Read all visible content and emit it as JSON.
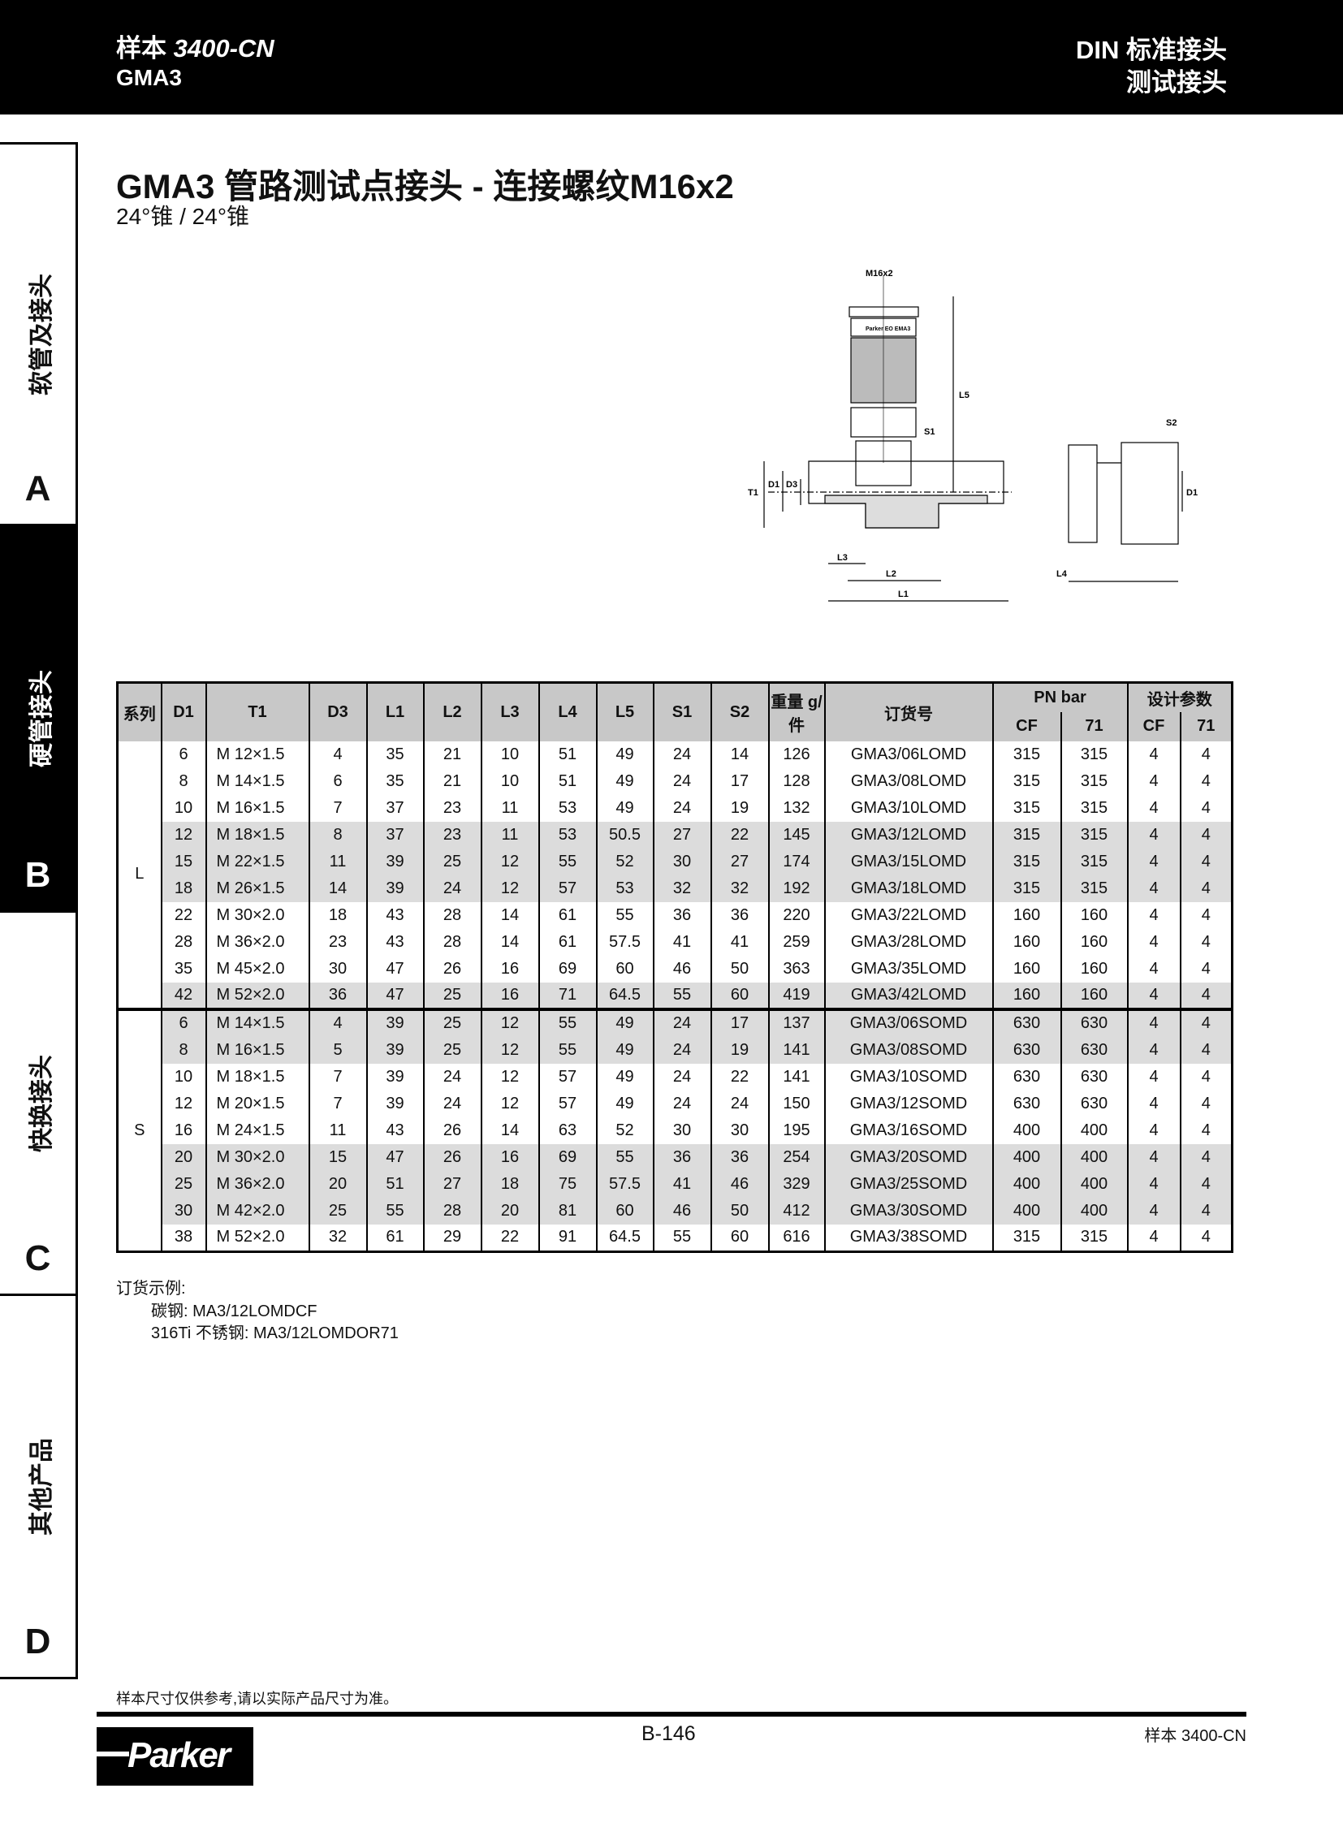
{
  "header": {
    "catalog_prefix": "样本",
    "catalog_code": "3400-CN",
    "product": "GMA3",
    "category": "DIN 标准接头",
    "subcategory": "测试接头"
  },
  "sidebar": [
    {
      "label": "软管及接头",
      "letter": "A"
    },
    {
      "label": "硬管接头",
      "letter": "B",
      "active": true
    },
    {
      "label": "快换接头",
      "letter": "C"
    },
    {
      "label": "其他产品",
      "letter": "D"
    }
  ],
  "title": "GMA3   管路测试点接头 - 连接螺纹M16x2",
  "subtitle": "24°锥 / 24°锥",
  "drawing": {
    "labels": {
      "thread": "M16x2",
      "L5": "L5",
      "S1": "S1",
      "T1": "T1",
      "D1": "D1",
      "D3": "D3",
      "L3": "L3",
      "L2": "L2",
      "L1": "L1",
      "S2": "S2",
      "D1b": "D1",
      "L4": "L4",
      "marking": "Parker EO EMA3"
    }
  },
  "table": {
    "headers": [
      "系列",
      "D1",
      "T1",
      "D3",
      "L1",
      "L2",
      "L3",
      "L4",
      "L5",
      "S1",
      "S2",
      "重量 g/ 件",
      "订货号",
      "PN bar",
      "设计参数"
    ],
    "subheaders": [
      "CF",
      "71",
      "CF",
      "71"
    ],
    "groups": [
      {
        "series": "L",
        "rows": [
          [
            "6",
            "M 12×1.5",
            "4",
            "35",
            "21",
            "10",
            "51",
            "49",
            "24",
            "14",
            "126",
            "GMA3/06LOMD",
            "315",
            "315",
            "4",
            "4"
          ],
          [
            "8",
            "M 14×1.5",
            "6",
            "35",
            "21",
            "10",
            "51",
            "49",
            "24",
            "17",
            "128",
            "GMA3/08LOMD",
            "315",
            "315",
            "4",
            "4"
          ],
          [
            "10",
            "M 16×1.5",
            "7",
            "37",
            "23",
            "11",
            "53",
            "49",
            "24",
            "19",
            "132",
            "GMA3/10LOMD",
            "315",
            "315",
            "4",
            "4"
          ],
          [
            "12",
            "M 18×1.5",
            "8",
            "37",
            "23",
            "11",
            "53",
            "50.5",
            "27",
            "22",
            "145",
            "GMA3/12LOMD",
            "315",
            "315",
            "4",
            "4"
          ],
          [
            "15",
            "M 22×1.5",
            "11",
            "39",
            "25",
            "12",
            "55",
            "52",
            "30",
            "27",
            "174",
            "GMA3/15LOMD",
            "315",
            "315",
            "4",
            "4"
          ],
          [
            "18",
            "M 26×1.5",
            "14",
            "39",
            "24",
            "12",
            "57",
            "53",
            "32",
            "32",
            "192",
            "GMA3/18LOMD",
            "315",
            "315",
            "4",
            "4"
          ],
          [
            "22",
            "M 30×2.0",
            "18",
            "43",
            "28",
            "14",
            "61",
            "55",
            "36",
            "36",
            "220",
            "GMA3/22LOMD",
            "160",
            "160",
            "4",
            "4"
          ],
          [
            "28",
            "M 36×2.0",
            "23",
            "43",
            "28",
            "14",
            "61",
            "57.5",
            "41",
            "41",
            "259",
            "GMA3/28LOMD",
            "160",
            "160",
            "4",
            "4"
          ],
          [
            "35",
            "M 45×2.0",
            "30",
            "47",
            "26",
            "16",
            "69",
            "60",
            "46",
            "50",
            "363",
            "GMA3/35LOMD",
            "160",
            "160",
            "4",
            "4"
          ],
          [
            "42",
            "M 52×2.0",
            "36",
            "47",
            "25",
            "16",
            "71",
            "64.5",
            "55",
            "60",
            "419",
            "GMA3/42LOMD",
            "160",
            "160",
            "4",
            "4"
          ]
        ],
        "shaded": [
          false,
          false,
          false,
          true,
          true,
          true,
          false,
          false,
          false,
          true
        ]
      },
      {
        "series": "S",
        "rows": [
          [
            "6",
            "M 14×1.5",
            "4",
            "39",
            "25",
            "12",
            "55",
            "49",
            "24",
            "17",
            "137",
            "GMA3/06SOMD",
            "630",
            "630",
            "4",
            "4"
          ],
          [
            "8",
            "M 16×1.5",
            "5",
            "39",
            "25",
            "12",
            "55",
            "49",
            "24",
            "19",
            "141",
            "GMA3/08SOMD",
            "630",
            "630",
            "4",
            "4"
          ],
          [
            "10",
            "M 18×1.5",
            "7",
            "39",
            "24",
            "12",
            "57",
            "49",
            "24",
            "22",
            "141",
            "GMA3/10SOMD",
            "630",
            "630",
            "4",
            "4"
          ],
          [
            "12",
            "M 20×1.5",
            "7",
            "39",
            "24",
            "12",
            "57",
            "49",
            "24",
            "24",
            "150",
            "GMA3/12SOMD",
            "630",
            "630",
            "4",
            "4"
          ],
          [
            "16",
            "M 24×1.5",
            "11",
            "43",
            "26",
            "14",
            "63",
            "52",
            "30",
            "30",
            "195",
            "GMA3/16SOMD",
            "400",
            "400",
            "4",
            "4"
          ],
          [
            "20",
            "M 30×2.0",
            "15",
            "47",
            "26",
            "16",
            "69",
            "55",
            "36",
            "36",
            "254",
            "GMA3/20SOMD",
            "400",
            "400",
            "4",
            "4"
          ],
          [
            "25",
            "M 36×2.0",
            "20",
            "51",
            "27",
            "18",
            "75",
            "57.5",
            "41",
            "46",
            "329",
            "GMA3/25SOMD",
            "400",
            "400",
            "4",
            "4"
          ],
          [
            "30",
            "M 42×2.0",
            "25",
            "55",
            "28",
            "20",
            "81",
            "60",
            "46",
            "50",
            "412",
            "GMA3/30SOMD",
            "400",
            "400",
            "4",
            "4"
          ],
          [
            "38",
            "M 52×2.0",
            "32",
            "61",
            "29",
            "22",
            "91",
            "64.5",
            "55",
            "60",
            "616",
            "GMA3/38SOMD",
            "315",
            "315",
            "4",
            "4"
          ]
        ],
        "shaded": [
          true,
          true,
          false,
          false,
          false,
          true,
          true,
          true,
          false
        ]
      }
    ]
  },
  "order_example": {
    "heading": "订货示例:",
    "line1": "碳钢: MA3/12LOMDCF",
    "line2": "316Ti 不锈钢: MA3/12LOMDOR71"
  },
  "footer": {
    "disclaimer": "样本尺寸仅供参考,请以实际产品尺寸为准。",
    "page": "B-146",
    "catalog": "样本 3400-CN",
    "logo": "Parker"
  }
}
